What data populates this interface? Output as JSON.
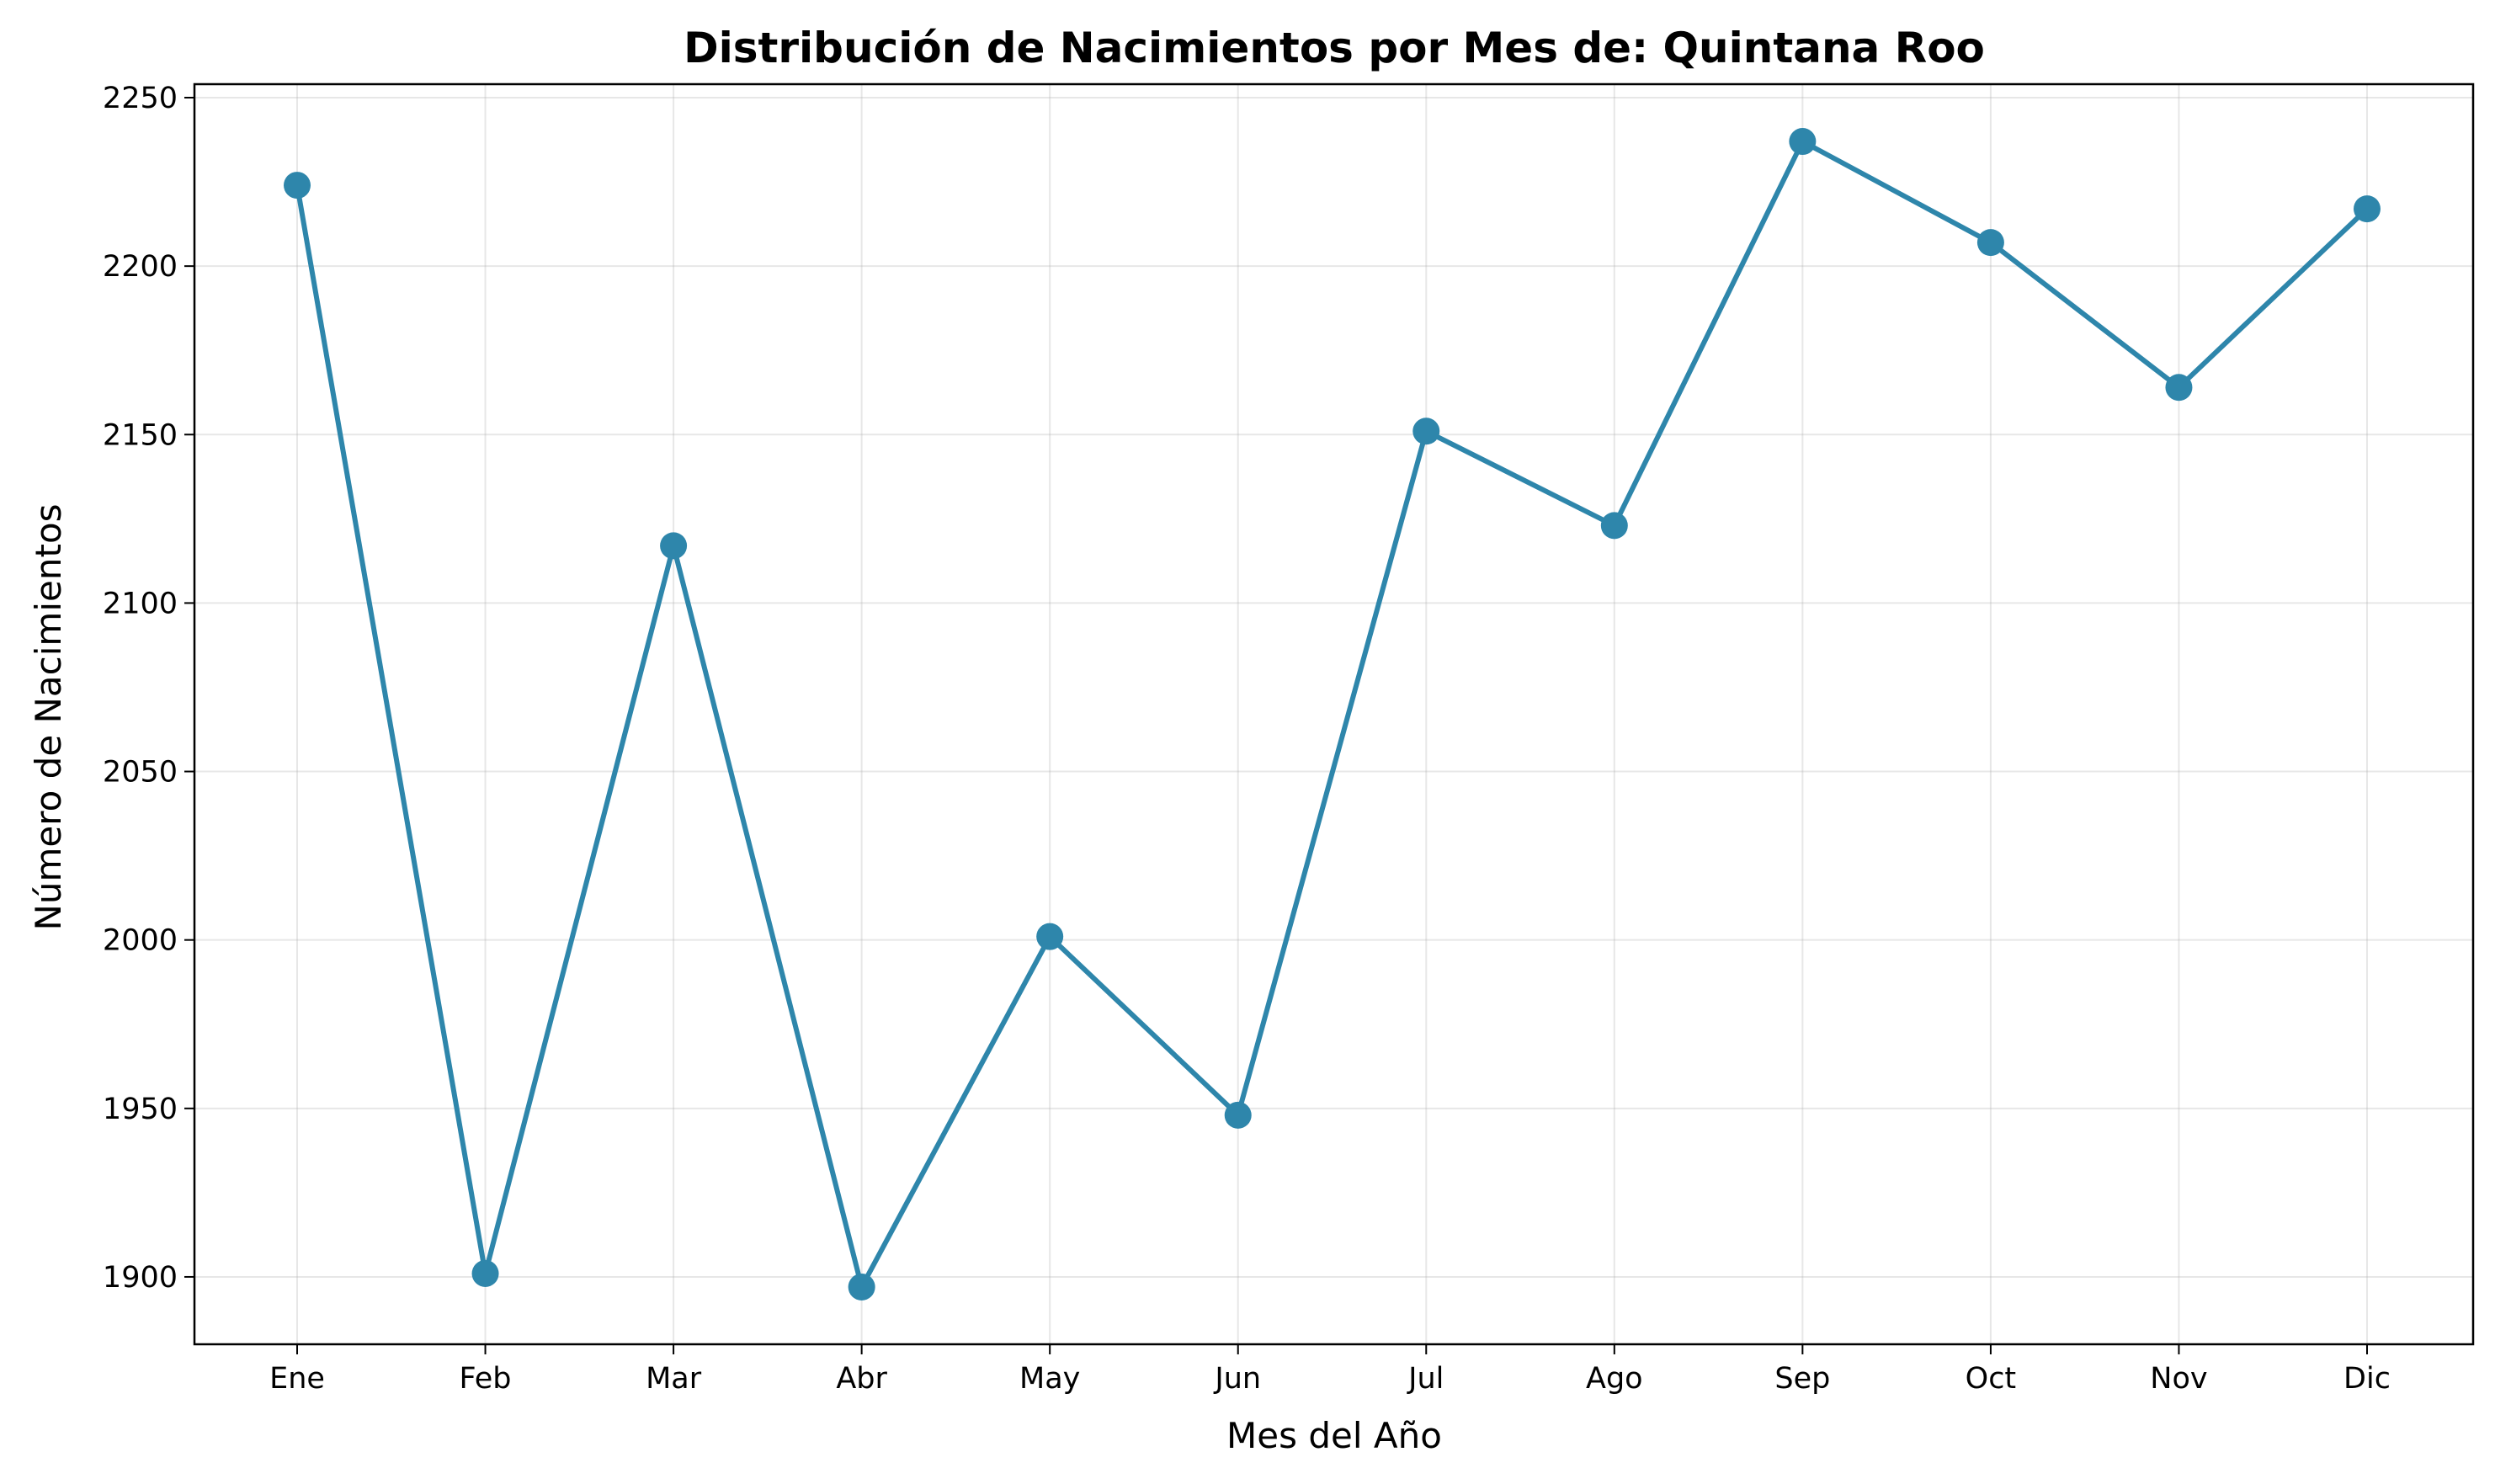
{
  "chart_data": {
    "type": "line",
    "title": "Distribución de Nacimientos por Mes de: Quintana Roo",
    "xlabel": "Mes del Año",
    "ylabel": "Número de Nacimientos",
    "categories": [
      "Ene",
      "Feb",
      "Mar",
      "Abr",
      "May",
      "Jun",
      "Jul",
      "Ago",
      "Sep",
      "Oct",
      "Nov",
      "Dic"
    ],
    "series": [
      {
        "values": [
          2224,
          1901,
          2117,
          1897,
          2001,
          1948,
          2151,
          2123,
          2237,
          2207,
          2164,
          2217
        ]
      }
    ],
    "ylim": [
      1880,
      2254
    ],
    "yticks": [
      "1900",
      "1950",
      "2000",
      "2050",
      "2100",
      "2150",
      "2200",
      "2250"
    ],
    "grid": true,
    "legend": "none",
    "line_color": "#2e86ab"
  }
}
